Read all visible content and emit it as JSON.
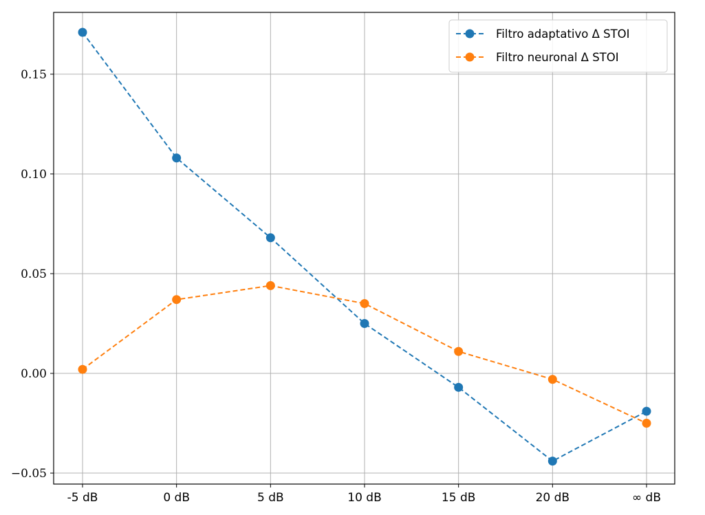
{
  "chart_data": {
    "type": "line",
    "title": "",
    "xlabel": "",
    "ylabel": "",
    "categories": [
      "-5 dB",
      "0 dB",
      "5 dB",
      "10 dB",
      "15 dB",
      "20 dB",
      "∞ dB"
    ],
    "y_ticks": [
      -0.05,
      0.0,
      0.05,
      0.1,
      0.15
    ],
    "y_tick_labels": [
      "−0.05",
      "0.00",
      "0.05",
      "0.10",
      "0.15"
    ],
    "ylim": [
      -0.0555,
      0.181
    ],
    "grid": true,
    "legend_position": "upper right",
    "series": [
      {
        "name": "Filtro adaptativo Δ STOI",
        "color": "#1f77b4",
        "linestyle": "dashed",
        "marker": "circle",
        "values": [
          0.171,
          0.108,
          0.068,
          0.025,
          -0.007,
          -0.044,
          -0.019
        ]
      },
      {
        "name": "Filtro neuronal Δ STOI",
        "color": "#ff7f0e",
        "linestyle": "dashed",
        "marker": "circle",
        "values": [
          0.002,
          0.037,
          0.044,
          0.035,
          0.011,
          -0.003,
          -0.025
        ]
      }
    ]
  }
}
